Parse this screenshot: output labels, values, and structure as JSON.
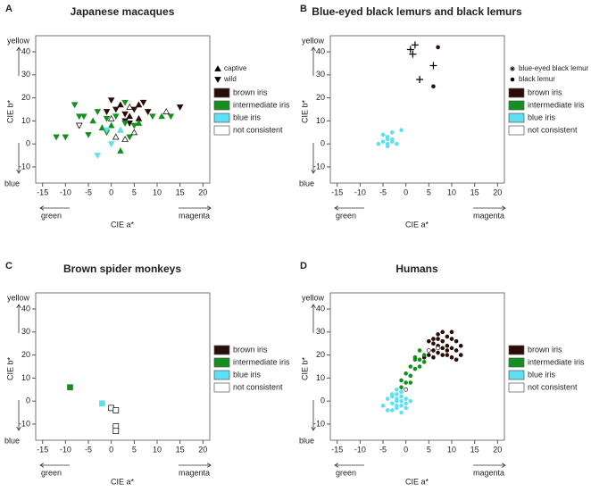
{
  "chart_data": [
    {
      "type": "scatter",
      "label": "A",
      "title": "Japanese macaques",
      "xlabel": "CIE a*",
      "ylabel": "CIE b*",
      "y_high": "yellow",
      "y_low": "blue",
      "x_low": "green",
      "x_high": "magenta",
      "xlim": [
        -16.5,
        21.5
      ],
      "ylim": [
        -17,
        47
      ],
      "xticks": [
        -15,
        -10,
        -5,
        0,
        5,
        10,
        15,
        20
      ],
      "yticks": [
        -10,
        0,
        10,
        20,
        30,
        40
      ],
      "marker_legend": [
        {
          "label": "captive",
          "marker": "up"
        },
        {
          "label": "wild",
          "marker": "down"
        }
      ],
      "legend": [
        {
          "label": "brown iris",
          "color": "#2b0d08"
        },
        {
          "label": "intermediate iris",
          "color": "#14901e"
        },
        {
          "label": "blue iris",
          "color": "#5ee0f0"
        },
        {
          "label": "not consistent",
          "color": "#ffffff"
        }
      ],
      "series": [
        {
          "color": "#2b0d08",
          "x": [
            0,
            1,
            2,
            3,
            4,
            5,
            6,
            7,
            8,
            15,
            3,
            6,
            -1,
            4
          ],
          "y": [
            19,
            15,
            17,
            13,
            12,
            15,
            11,
            18,
            14,
            16,
            10,
            17,
            14,
            9
          ],
          "markers": [
            "down",
            "down",
            "up",
            "down",
            "up",
            "down",
            "up",
            "down",
            "down",
            "down",
            "down",
            "up",
            "down",
            "down"
          ]
        },
        {
          "color": "#14901e",
          "x": [
            -12,
            -10,
            -8,
            -7,
            -6,
            -5,
            -4,
            -3,
            -2,
            -1,
            0,
            1,
            2,
            3,
            4,
            5,
            6,
            9,
            11,
            13,
            2,
            -7,
            -1,
            3
          ],
          "y": [
            3,
            3,
            17,
            8,
            12,
            4,
            10,
            14,
            7,
            5,
            8,
            12,
            6,
            9,
            3,
            8,
            9,
            12,
            12,
            12,
            -3,
            12,
            11,
            18
          ],
          "markers": [
            "down",
            "down",
            "down",
            "down",
            "down",
            "down",
            "up",
            "down",
            "up",
            "down",
            "up",
            "down",
            "up",
            "down",
            "down",
            "down",
            "up",
            "down",
            "up",
            "down",
            "up",
            "down",
            "down",
            "down"
          ]
        },
        {
          "color": "#5ee0f0",
          "x": [
            -3,
            -1,
            0,
            2
          ],
          "y": [
            -5,
            6,
            0,
            6
          ],
          "markers": [
            "down",
            "down",
            "down",
            "up"
          ]
        },
        {
          "color": "#ffffff",
          "x": [
            -7,
            0,
            3,
            4,
            5,
            12,
            1
          ],
          "y": [
            8,
            11,
            2,
            16,
            5,
            14,
            3
          ],
          "markers": [
            "down",
            "up",
            "up",
            "up",
            "up",
            "up",
            "up"
          ]
        }
      ]
    },
    {
      "type": "scatter",
      "label": "B",
      "title": "Blue-eyed black lemurs and black lemurs",
      "xlabel": "CIE a*",
      "ylabel": "CIE b*",
      "y_high": "yellow",
      "y_low": "blue",
      "x_low": "green",
      "x_high": "magenta",
      "xlim": [
        -16.5,
        21.5
      ],
      "ylim": [
        -17,
        47
      ],
      "xticks": [
        -15,
        -10,
        -5,
        0,
        5,
        10,
        15,
        20
      ],
      "yticks": [
        -10,
        0,
        10,
        20,
        30,
        40
      ],
      "marker_legend": [
        {
          "label": "blue-eyed black lemur",
          "marker": "asterisk"
        },
        {
          "label": "black lemur",
          "marker": "dot"
        }
      ],
      "legend": [
        {
          "label": "brown iris",
          "color": "#2b0d08"
        },
        {
          "label": "intermediate iris",
          "color": "#14901e"
        },
        {
          "label": "blue iris",
          "color": "#5ee0f0"
        },
        {
          "label": "not consistent",
          "color": "#ffffff"
        }
      ],
      "series": [
        {
          "color": "#000000",
          "x": [
            1,
            2,
            1.5,
            6,
            3
          ],
          "y": [
            41,
            43,
            39,
            34,
            28
          ],
          "markers": [
            "plus",
            "plus",
            "plus",
            "plus",
            "plus"
          ]
        },
        {
          "color": "#2b0d08",
          "x": [
            7,
            6
          ],
          "y": [
            42,
            25
          ],
          "markers": [
            "dot",
            "dot"
          ]
        },
        {
          "color": "#5ee0f0",
          "x": [
            -5,
            -4,
            -3,
            -4,
            -3,
            -5,
            -2,
            -4,
            -6,
            -3,
            -1,
            -4
          ],
          "y": [
            1,
            0,
            1,
            3,
            2,
            4,
            0,
            -1,
            0,
            5,
            6,
            2
          ],
          "markers": [
            "dot",
            "dot",
            "dot",
            "dot",
            "dot",
            "dot",
            "dot",
            "dot",
            "dot",
            "dot",
            "dot",
            "dot"
          ]
        }
      ]
    },
    {
      "type": "scatter",
      "label": "C",
      "title": "Brown spider monkeys",
      "xlabel": "CIE a*",
      "ylabel": "CIE b*",
      "y_high": "yellow",
      "y_low": "blue",
      "x_low": "green",
      "x_high": "magenta",
      "xlim": [
        -16.5,
        21.5
      ],
      "ylim": [
        -17,
        47
      ],
      "xticks": [
        -15,
        -10,
        -5,
        0,
        5,
        10,
        15,
        20
      ],
      "yticks": [
        -10,
        0,
        10,
        20,
        30,
        40
      ],
      "legend": [
        {
          "label": "brown iris",
          "color": "#2b0d08"
        },
        {
          "label": "intermediate iris",
          "color": "#14901e"
        },
        {
          "label": "blue iris",
          "color": "#5ee0f0"
        },
        {
          "label": "not consistent",
          "color": "#ffffff"
        }
      ],
      "series": [
        {
          "color": "#14901e",
          "x": [
            -9
          ],
          "y": [
            6
          ],
          "markers": [
            "square"
          ]
        },
        {
          "color": "#5ee0f0",
          "x": [
            -2
          ],
          "y": [
            -1
          ],
          "markers": [
            "square"
          ]
        },
        {
          "color": "#ffffff",
          "x": [
            0,
            1,
            1,
            1
          ],
          "y": [
            -3,
            -4,
            -11,
            -13
          ],
          "markers": [
            "square",
            "square",
            "square",
            "square"
          ]
        }
      ]
    },
    {
      "type": "scatter",
      "label": "D",
      "title": "Humans",
      "xlabel": "CIE a*",
      "ylabel": "CIE b*",
      "y_high": "yellow",
      "y_low": "blue",
      "x_low": "green",
      "x_high": "magenta",
      "xlim": [
        -16.5,
        21.5
      ],
      "ylim": [
        -17,
        47
      ],
      "xticks": [
        -15,
        -10,
        -5,
        0,
        5,
        10,
        15,
        20
      ],
      "yticks": [
        -10,
        0,
        10,
        20,
        30,
        40
      ],
      "legend": [
        {
          "label": "brown iris",
          "color": "#2b0d08"
        },
        {
          "label": "intermediate iris",
          "color": "#14901e"
        },
        {
          "label": "blue iris",
          "color": "#5ee0f0"
        },
        {
          "label": "not consistent",
          "color": "#ffffff"
        }
      ],
      "series": [
        {
          "color": "#2b0d08",
          "x": [
            6,
            7,
            8,
            9,
            10,
            11,
            6,
            7,
            8,
            9,
            10,
            11,
            12,
            6,
            7,
            8,
            9,
            10,
            11,
            5,
            4,
            5,
            8,
            9,
            12,
            7,
            10,
            6
          ],
          "y": [
            27,
            29,
            30,
            28,
            27,
            26,
            25,
            24,
            26,
            24,
            23,
            22,
            20,
            22,
            21,
            20,
            22,
            19,
            18,
            20,
            19,
            26,
            23,
            20,
            24,
            27,
            30,
            19
          ],
          "markers": [
            "dot",
            "dot",
            "dot",
            "dot",
            "dot",
            "dot",
            "dot",
            "dot",
            "dot",
            "dot",
            "dot",
            "dot",
            "dot",
            "dot",
            "dot",
            "dot",
            "dot",
            "dot",
            "dot",
            "dot",
            "dot",
            "dot",
            "dot",
            "dot",
            "dot",
            "dot",
            "dot",
            "dot"
          ]
        },
        {
          "color": "#14901e",
          "x": [
            3,
            4,
            2,
            3,
            1,
            2,
            0,
            1,
            -1,
            0,
            -1,
            2,
            3,
            1,
            4
          ],
          "y": [
            22,
            20,
            19,
            18,
            15,
            14,
            12,
            11,
            9,
            8,
            6,
            18,
            15,
            8,
            17
          ],
          "markers": [
            "dot",
            "dot",
            "dot",
            "dot",
            "dot",
            "dot",
            "dot",
            "dot",
            "dot",
            "dot",
            "dot",
            "dot",
            "dot",
            "dot",
            "dot"
          ]
        },
        {
          "color": "#5ee0f0",
          "x": [
            -2,
            -1,
            -2,
            -3,
            -1,
            0,
            -2,
            -3,
            -1,
            -2,
            -4,
            -1,
            0,
            -2,
            -3,
            -1,
            0,
            -5,
            -3,
            1,
            -2,
            -4
          ],
          "y": [
            5,
            4,
            3,
            2,
            2,
            1,
            0,
            -1,
            -2,
            -3,
            -4,
            -5,
            -3,
            1,
            3,
            0,
            -1,
            -2,
            -4,
            0,
            -2,
            1
          ],
          "markers": [
            "dot",
            "dot",
            "dot",
            "dot",
            "dot",
            "dot",
            "dot",
            "dot",
            "dot",
            "dot",
            "dot",
            "dot",
            "dot",
            "dot",
            "dot",
            "dot",
            "dot",
            "dot",
            "dot",
            "dot",
            "dot",
            "dot"
          ]
        },
        {
          "color": "#ffffff",
          "x": [
            0,
            7,
            5
          ],
          "y": [
            5,
            23,
            22
          ],
          "markers": [
            "dot",
            "dot",
            "dot"
          ]
        }
      ]
    }
  ]
}
